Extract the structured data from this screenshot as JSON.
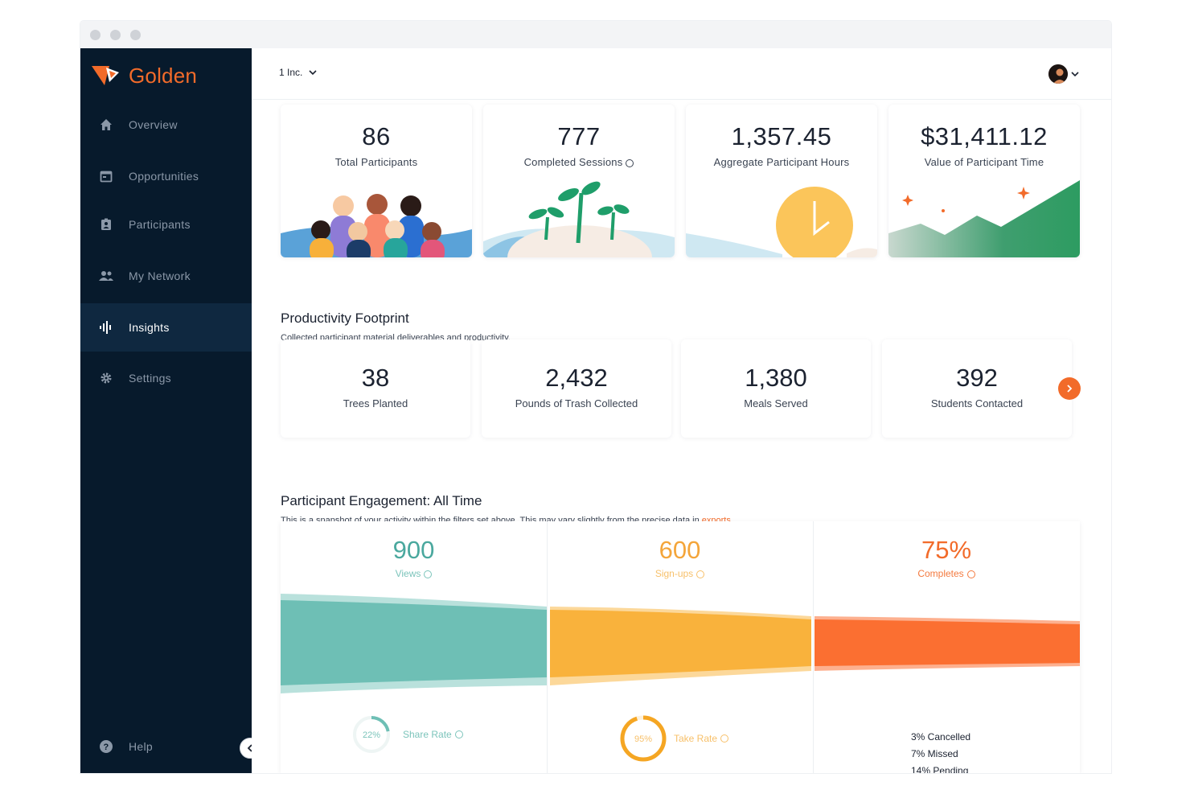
{
  "app": {
    "brand": "Golden"
  },
  "sidebar": {
    "items": [
      {
        "label": "Overview",
        "icon": "home-icon",
        "active": false
      },
      {
        "label": "Opportunities",
        "icon": "calendar-icon",
        "active": false
      },
      {
        "label": "Participants",
        "icon": "badge-icon",
        "active": false
      },
      {
        "label": "My Network",
        "icon": "people-icon",
        "active": false
      },
      {
        "label": "Insights",
        "icon": "insights-icon",
        "active": true
      },
      {
        "label": "Settings",
        "icon": "gear-icon",
        "active": false
      }
    ],
    "help": {
      "label": "Help",
      "icon": "help-icon"
    }
  },
  "topbar": {
    "org": "1 Inc."
  },
  "stats": [
    {
      "value": "86",
      "label": "Total Participants"
    },
    {
      "value": "777",
      "label": "Completed Sessions"
    },
    {
      "value": "1,357.45",
      "label": "Aggregate Participant Hours"
    },
    {
      "value": "$31,411.12",
      "label": "Value of Participant Time"
    }
  ],
  "productivity": {
    "title": "Productivity Footprint",
    "subtitle": "Collected participant material deliverables and productivity.",
    "items": [
      {
        "value": "38",
        "label": "Trees Planted"
      },
      {
        "value": "2,432",
        "label": "Pounds of Trash Collected"
      },
      {
        "value": "1,380",
        "label": "Meals Served"
      },
      {
        "value": "392",
        "label": "Students Contacted"
      }
    ]
  },
  "engagement": {
    "title": "Participant Engagement: All Time",
    "subtitle": "This is a snapshot of your activity within the filters set above. This may vary slightly from the precise data in",
    "subtitle_link": "exports.",
    "columns": [
      {
        "value": "900",
        "label": "Views",
        "rate_value": "22%",
        "rate_label": "Share Rate",
        "rate_fraction": 0.22
      },
      {
        "value": "600",
        "label": "Sign-ups",
        "rate_value": "95%",
        "rate_label": "Take Rate",
        "rate_fraction": 0.95
      },
      {
        "value": "75%",
        "label": "Completes",
        "breakdown": [
          "3% Cancelled",
          "7% Missed",
          "14% Pending"
        ]
      }
    ]
  },
  "colors": {
    "sidebar": "#071a2c",
    "sidebar_active": "#0f2840",
    "accent": "#f26b2a",
    "teal": "#6ebfb5",
    "yellow": "#f9b23c",
    "orange": "#fb6f31"
  }
}
